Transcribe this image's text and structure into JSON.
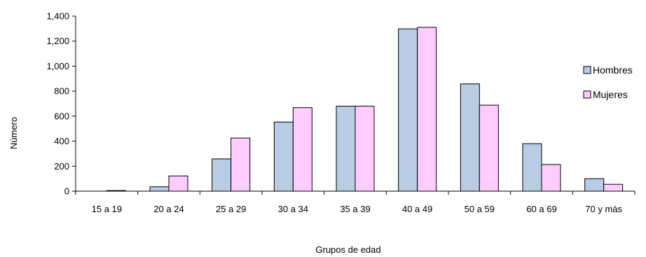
{
  "chart_data": {
    "type": "bar",
    "title": "",
    "xlabel": "Grupos de edad",
    "ylabel": "Número",
    "ylim": [
      0,
      1400
    ],
    "yticks": [
      0,
      200,
      400,
      600,
      800,
      1000,
      1200,
      1400
    ],
    "ytick_labels": [
      "0",
      "200",
      "400",
      "600",
      "800",
      "1,000",
      "1,200",
      "1,400"
    ],
    "categories": [
      "15 a 19",
      "20 a 24",
      "25 a 29",
      "30 a 34",
      "35 a 39",
      "40 a 49",
      "50 a 59",
      "60 a 69",
      "70 y más"
    ],
    "series": [
      {
        "name": "Hombres",
        "color": "#b8cce4",
        "values": [
          0,
          35,
          258,
          553,
          680,
          1298,
          858,
          380,
          100
        ]
      },
      {
        "name": "Mujeres",
        "color": "#ffccff",
        "values": [
          5,
          122,
          425,
          668,
          680,
          1310,
          688,
          213,
          55
        ]
      }
    ],
    "grid": false,
    "legend_position": "right"
  }
}
